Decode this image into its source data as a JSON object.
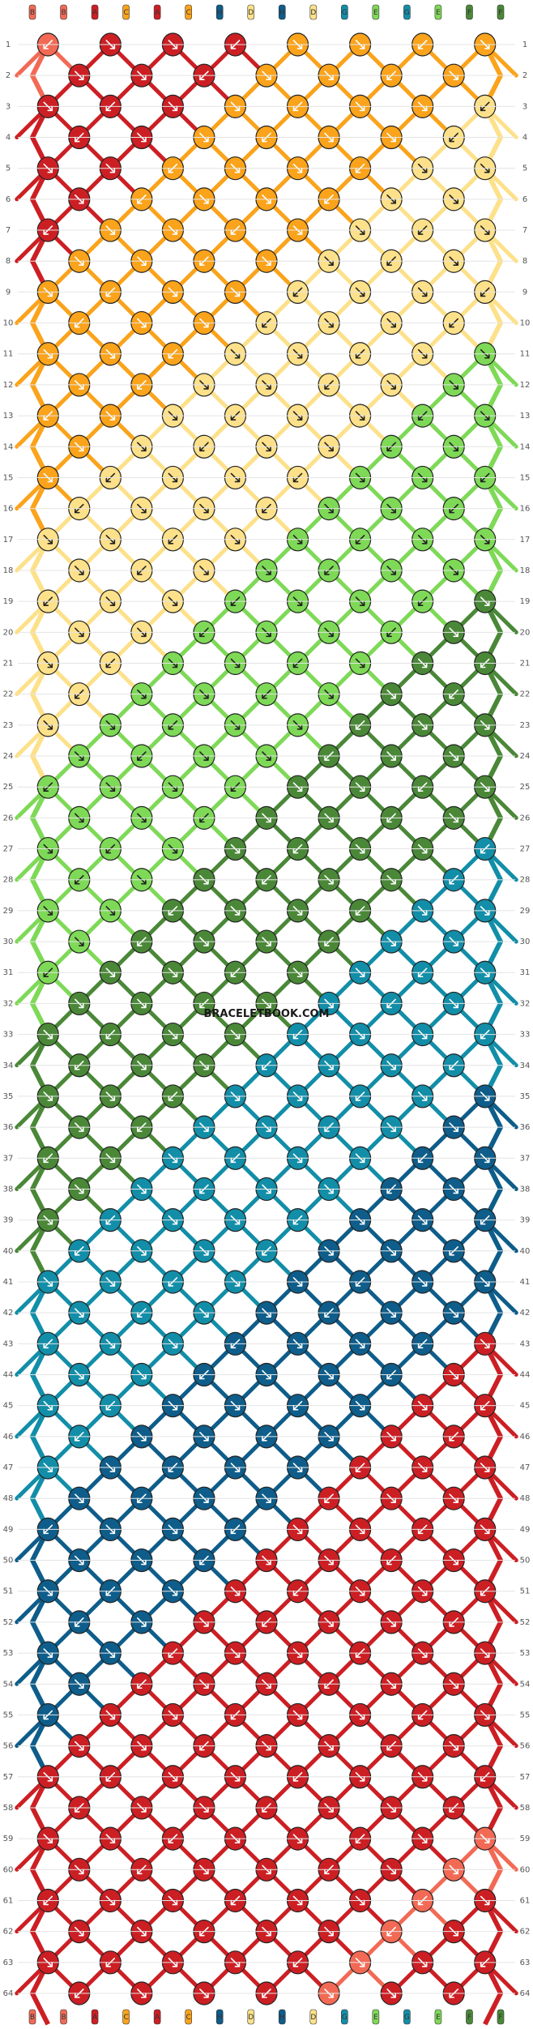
{
  "watermark": "BRACELETBOOK.COM",
  "colors": {
    "A": "#cc1f24",
    "B": "#f26a55",
    "C": "#faa31b",
    "D": "#fde18a",
    "E": "#7ed957",
    "F": "#4a8838",
    "G": "#128ea8",
    "H": "#0e5d8a"
  },
  "pattern": {
    "rows": 64,
    "strings": [
      "B",
      "B",
      "A",
      "C",
      "A",
      "C",
      "H",
      "D",
      "H",
      "D",
      "G",
      "E",
      "G",
      "E",
      "F",
      "F"
    ],
    "row_labels": [
      "1",
      "2",
      "3",
      "4",
      "5",
      "6",
      "7",
      "8",
      "9",
      "10",
      "11",
      "12",
      "13",
      "14",
      "15",
      "16",
      "17",
      "18",
      "19",
      "20",
      "21",
      "22",
      "23",
      "24",
      "25",
      "26",
      "27",
      "28",
      "29",
      "30",
      "31",
      "32",
      "33",
      "34",
      "35",
      "36",
      "37",
      "38",
      "39",
      "40",
      "41",
      "42",
      "43",
      "44",
      "45",
      "46",
      "47",
      "48",
      "49",
      "50",
      "51",
      "52",
      "53",
      "54",
      "55",
      "56",
      "57",
      "58",
      "59",
      "60",
      "61",
      "62",
      "63",
      "64"
    ]
  },
  "knot_bands": [
    {
      "color": "B",
      "offset": 0
    },
    {
      "color": "A",
      "offset": 2
    },
    {
      "color": "C",
      "offset": 8
    },
    {
      "color": "D",
      "offset": 16
    },
    {
      "color": "E",
      "offset": 24
    },
    {
      "color": "F",
      "offset": 32
    },
    {
      "color": "G",
      "offset": 40
    },
    {
      "color": "H",
      "offset": 48
    },
    {
      "color": "A",
      "offset": 56
    }
  ]
}
